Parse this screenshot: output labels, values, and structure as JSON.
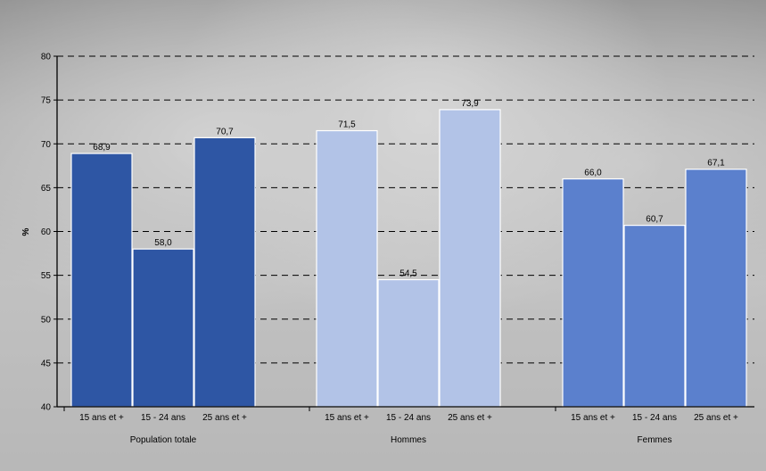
{
  "chart_data": {
    "type": "bar",
    "ylabel": "%",
    "ylim": [
      40,
      80
    ],
    "yticks": [
      40,
      45,
      50,
      55,
      60,
      65,
      70,
      75,
      80
    ],
    "grid": "dashed-horizontal",
    "groups": [
      {
        "name": "Population totale",
        "color": "#2e56a4",
        "categories": [
          "15 ans et +",
          "15 - 24 ans",
          "25 ans et +"
        ],
        "values": [
          68.9,
          58.0,
          70.7
        ],
        "labels": [
          "68,9",
          "58,0",
          "70,7"
        ]
      },
      {
        "name": "Hommes",
        "color": "#b2c3e7",
        "categories": [
          "15 ans et +",
          "15 - 24 ans",
          "25 ans et +"
        ],
        "values": [
          71.5,
          54.5,
          73.9
        ],
        "labels": [
          "71,5",
          "54,5",
          "73,9"
        ]
      },
      {
        "name": "Femmes",
        "color": "#5b80cd",
        "categories": [
          "15 ans et +",
          "15 - 24 ans",
          "25 ans et +"
        ],
        "values": [
          66.0,
          60.7,
          67.1
        ],
        "labels": [
          "66,0",
          "60,7",
          "67,1"
        ]
      }
    ]
  }
}
